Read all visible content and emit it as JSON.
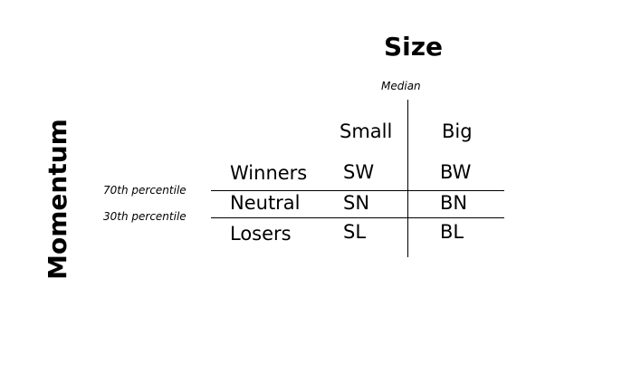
{
  "titles": {
    "size": "Size",
    "momentum": "Momentum"
  },
  "breakpoints": {
    "median": "Median",
    "percentile_70": "70th percentile",
    "percentile_30": "30th percentile"
  },
  "columns": [
    "Small",
    "Big"
  ],
  "rows": [
    {
      "label": "Winners",
      "cells": [
        "SW",
        "BW"
      ]
    },
    {
      "label": "Neutral",
      "cells": [
        "SN",
        "BN"
      ]
    },
    {
      "label": "Losers",
      "cells": [
        "SL",
        "BL"
      ]
    }
  ]
}
